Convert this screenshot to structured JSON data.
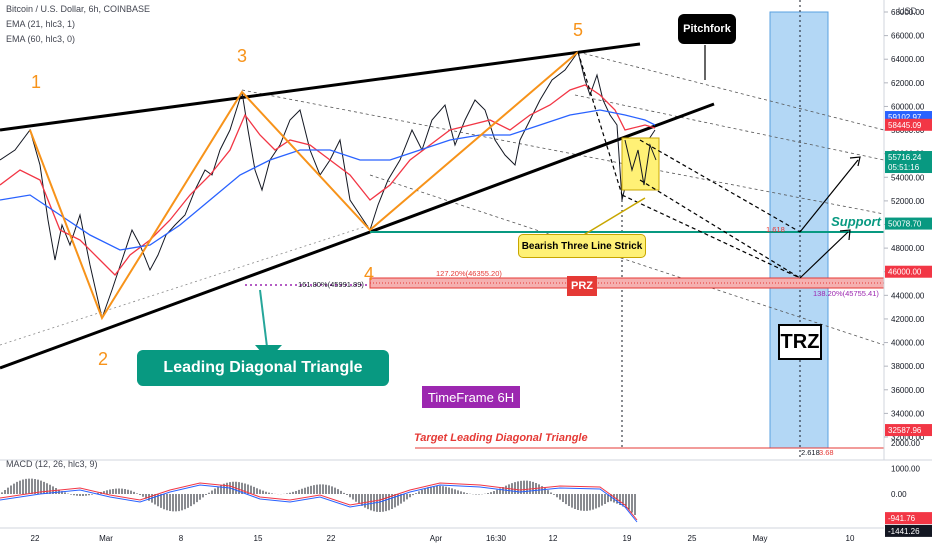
{
  "header": {
    "symbol_line": "Bitcoin / U.S. Dollar, 6h, COINBASE",
    "ema1": "EMA (21, hlc3, 1)",
    "ema2": "EMA (60, hlc3, 0)",
    "currency": "USD"
  },
  "chart_data": {
    "type": "line",
    "y_ticks": [
      32000,
      34000,
      36000,
      38000,
      40000,
      42000,
      44000,
      46000,
      48000,
      50000,
      52000,
      54000,
      56000,
      58000,
      60000,
      62000,
      64000,
      66000,
      68000
    ],
    "x_ticks": [
      "22",
      "Mar",
      "8",
      "15",
      "22",
      "Apr",
      "16:30",
      "12",
      "19",
      "25",
      "May",
      "10"
    ],
    "price_badges": [
      {
        "label": "59102.97",
        "value": 59102.97,
        "color": "#2962ff"
      },
      {
        "label": "58445.09",
        "value": 58445.09,
        "color": "#f23645"
      },
      {
        "label": "55716.24",
        "value": 55716.24,
        "color": "#089981",
        "sub": "05:51:16"
      },
      {
        "label": "50078.70",
        "value": 50078.7,
        "color": "#089981"
      },
      {
        "label": "46000.00",
        "value": 46000,
        "color": "#f23645"
      },
      {
        "label": "32587.96",
        "value": 32587.96,
        "color": "#f23645"
      }
    ],
    "main_wave_labels": [
      "1",
      "2",
      "3",
      "4",
      "5"
    ],
    "fib_levels": [
      {
        "label": "161.80%(45991.89)",
        "value": 45991.89
      },
      {
        "label": "127.20%(46355.20)",
        "value": 46355.2
      },
      {
        "label": "138.20%(45755.41)",
        "value": 45755.41
      },
      {
        "label": "1.618",
        "value": 50078.7
      },
      {
        "label": "2.618",
        "value": 32587.96
      },
      {
        "label": "3.68",
        "value": 32587.96
      }
    ]
  },
  "annotations": {
    "pitchfork": "Pitchfork",
    "leading_diagonal": "Leading Diagonal Triangle",
    "timeframe": "TimeFrame 6H",
    "bearish": "Bearish Three Line Strick",
    "support": "Support",
    "prz": "PRZ",
    "trz": "TRZ",
    "target": "Target Leading Diagonal Triangle"
  },
  "macd": {
    "label": "MACD (12, 26, hlc3, 9)",
    "ticks": [
      {
        "label": "2000.00",
        "value": 2000
      },
      {
        "label": "1000.00",
        "value": 1000
      },
      {
        "label": "0.00",
        "value": 0
      },
      {
        "label": "-1000.00",
        "value": -1000
      }
    ],
    "badges": [
      {
        "label": "-941.76",
        "value": -941.76,
        "color": "#f23645"
      },
      {
        "label": "-1441.26",
        "value": -1441.26,
        "color": "#131722"
      }
    ]
  }
}
